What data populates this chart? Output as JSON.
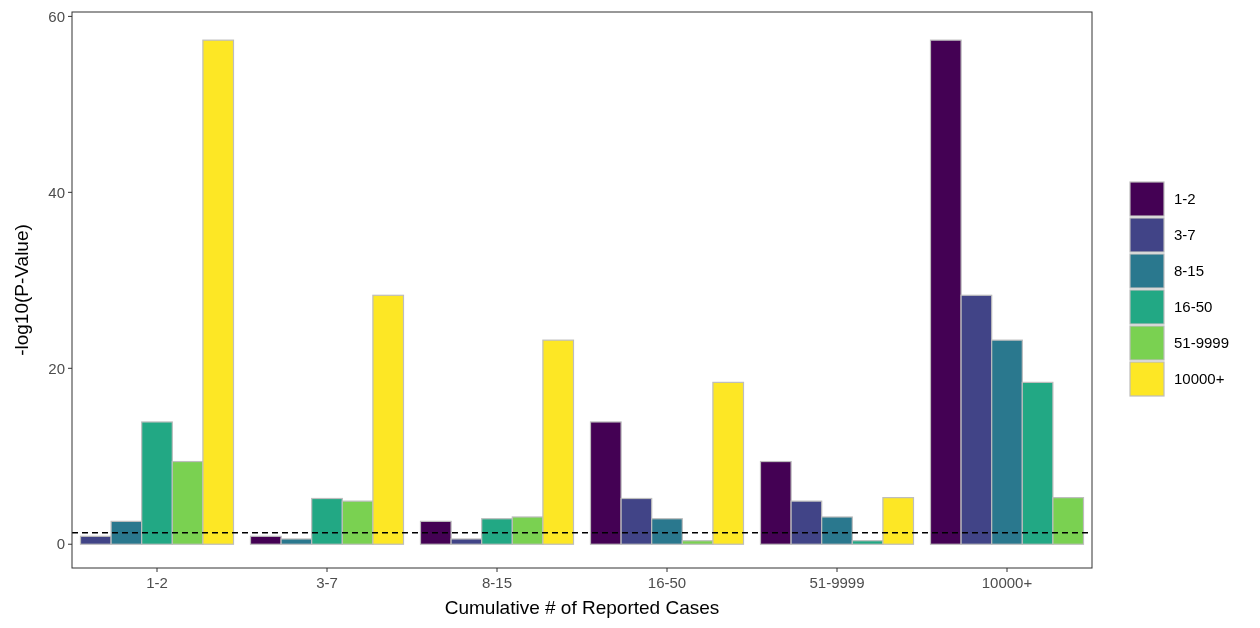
{
  "chart_data": {
    "type": "bar",
    "xlabel": "Cumulative # of Reported Cases",
    "ylabel": "-log10(P-Value)",
    "categories": [
      "1-2",
      "3-7",
      "8-15",
      "16-50",
      "51-9999",
      "10000+"
    ],
    "series": [
      {
        "name": "1-2",
        "color": "#440154",
        "values": [
          null,
          0.9,
          2.6,
          13.9,
          9.4,
          57.3
        ]
      },
      {
        "name": "3-7",
        "color": "#414487",
        "values": [
          0.9,
          null,
          0.6,
          5.2,
          4.9,
          28.3
        ]
      },
      {
        "name": "8-15",
        "color": "#2a788e",
        "values": [
          2.6,
          0.6,
          null,
          2.9,
          3.1,
          23.2
        ]
      },
      {
        "name": "16-50",
        "color": "#22a884",
        "values": [
          13.9,
          5.2,
          2.9,
          null,
          0.4,
          18.4
        ]
      },
      {
        "name": "51-9999",
        "color": "#7ad151",
        "values": [
          9.4,
          4.9,
          3.1,
          0.4,
          null,
          5.3
        ]
      },
      {
        "name": "10000+",
        "color": "#fde725",
        "values": [
          57.3,
          28.3,
          23.2,
          18.4,
          5.3,
          null
        ]
      }
    ],
    "ylim": [
      -2.7,
      60.5
    ],
    "yticks": [
      0,
      20,
      40,
      60
    ],
    "grid": false,
    "legend": "right",
    "ref_lines": [
      {
        "axis": "y",
        "value": 1.3,
        "color": "#000000",
        "line_style": "dashed"
      }
    ]
  }
}
